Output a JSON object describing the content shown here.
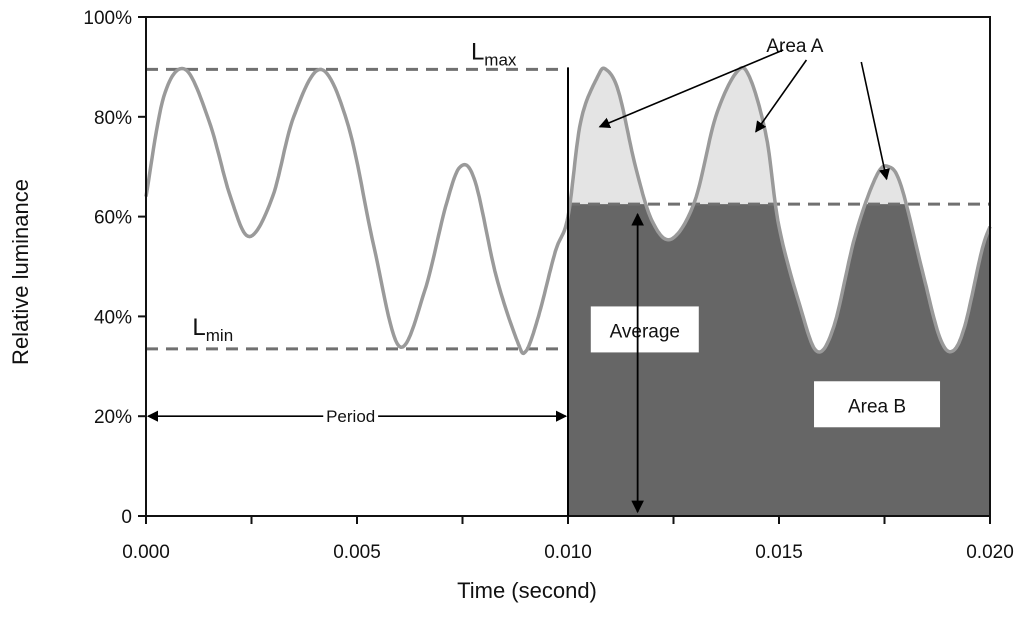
{
  "chart_data": {
    "type": "line",
    "xlabel": "Time (second)",
    "ylabel": "Relative luminance",
    "xlim": [
      0,
      0.02
    ],
    "ylim": [
      0,
      1
    ],
    "x_tick_labels": [
      "0.000",
      "0.005",
      "0.010",
      "0.015",
      "0.020"
    ],
    "y_tick_labels": [
      "0",
      "20%",
      "40%",
      "60%",
      "80%",
      "100%"
    ],
    "grid": false,
    "series": [
      {
        "color": "#9a9a9a",
        "x": [
          0,
          0.00042,
          0.00093,
          0.0015,
          0.002,
          0.00245,
          0.003,
          0.0035,
          0.00415,
          0.0048,
          0.0054,
          0.006,
          0.0066,
          0.0071,
          0.00745,
          0.0078,
          0.0083,
          0.0088,
          0.009,
          0.0093,
          0.0097,
          0.01,
          0.0103,
          0.0107,
          0.0109,
          0.0112,
          0.0116,
          0.012,
          0.01245,
          0.013,
          0.0135,
          0.014,
          0.0143,
          0.0147,
          0.015,
          0.0155,
          0.0159,
          0.0163,
          0.0168,
          0.0173,
          0.0176,
          0.0179,
          0.0184,
          0.0188,
          0.0191,
          0.0194,
          0.0198,
          0.02
        ],
        "y": [
          0.64,
          0.84,
          0.895,
          0.79,
          0.64,
          0.56,
          0.64,
          0.8,
          0.895,
          0.78,
          0.54,
          0.34,
          0.45,
          0.62,
          0.7,
          0.67,
          0.48,
          0.35,
          0.33,
          0.4,
          0.53,
          0.6,
          0.79,
          0.88,
          0.895,
          0.85,
          0.7,
          0.59,
          0.555,
          0.63,
          0.8,
          0.89,
          0.88,
          0.76,
          0.58,
          0.42,
          0.33,
          0.38,
          0.56,
          0.68,
          0.7,
          0.66,
          0.49,
          0.36,
          0.33,
          0.38,
          0.53,
          0.58
        ]
      }
    ],
    "lmax": 0.895,
    "lmin": 0.335,
    "average": 0.625,
    "annotations": {
      "lmax_label": "L",
      "lmax_sub": "max",
      "lmin_label": "L",
      "lmin_sub": "min",
      "area_a": "Area A",
      "area_b": "Area B",
      "average": "Average",
      "period": "Period"
    },
    "colors": {
      "curve": "#9a9a9a",
      "area_a_fill": "#e4e4e4",
      "area_b_fill": "#666666",
      "dashed": "#707070",
      "axis": "#111111"
    }
  }
}
